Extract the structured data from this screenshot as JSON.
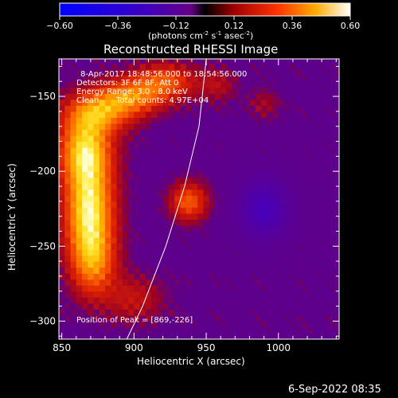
{
  "chart_data": {
    "type": "heatmap",
    "title": "Reconstructed RHESSI Image",
    "xlabel": "Heliocentric X (arcsec)",
    "ylabel": "Heliocentric Y (arcsec)",
    "xlim": [
      848,
      1042
    ],
    "ylim": [
      -312,
      -125
    ],
    "xticks": [
      850,
      900,
      950,
      1000
    ],
    "yticks": [
      -150,
      -200,
      -250,
      -300
    ],
    "colorbar": {
      "min": -0.6,
      "max": 0.6,
      "ticks": [
        "-0.60",
        "-0.36",
        "-0.12",
        "0.12",
        "0.36",
        "0.60"
      ],
      "label_parts": [
        "(photons cm",
        "-2",
        " s",
        "-1",
        " asec",
        "-2",
        ")"
      ]
    },
    "annotations": {
      "time_range": "8-Apr-2017 18:48:56.000 to 18:54:56.000",
      "detectors": "Detectors: 3F 6F 8F, Att 0",
      "energy_range": "Energy Range: 3.0 - 8.0 keV",
      "clean": "Clean",
      "total_counts": "Total counts: 4.97E+04",
      "peak": "Position of Peak = [869,-226]"
    },
    "peak": {
      "x": 869,
      "y": -226,
      "value": 0.6
    },
    "sources": [
      {
        "x": 869,
        "y": -226,
        "amp": 0.95,
        "sx": 12,
        "sy": 24
      },
      {
        "x": 866,
        "y": -185,
        "amp": 0.75,
        "sx": 13,
        "sy": 16
      },
      {
        "x": 875,
        "y": -160,
        "amp": 0.6,
        "sx": 16,
        "sy": 10
      },
      {
        "x": 898,
        "y": -150,
        "amp": 0.55,
        "sx": 15,
        "sy": 9
      },
      {
        "x": 922,
        "y": -140,
        "amp": 0.5,
        "sx": 15,
        "sy": 9
      },
      {
        "x": 938,
        "y": -220,
        "amp": 0.55,
        "sx": 9,
        "sy": 9
      },
      {
        "x": 872,
        "y": -262,
        "amp": 0.5,
        "sx": 11,
        "sy": 16
      },
      {
        "x": 900,
        "y": -285,
        "amp": 0.28,
        "sx": 14,
        "sy": 11
      },
      {
        "x": 958,
        "y": -142,
        "amp": 0.22,
        "sx": 9,
        "sy": 8
      },
      {
        "x": 990,
        "y": -155,
        "amp": 0.18,
        "sx": 8,
        "sy": 7
      },
      {
        "x": 990,
        "y": -225,
        "amp": -0.35,
        "sx": 12,
        "sy": 14
      }
    ],
    "limb": [
      [
        950,
        -125
      ],
      [
        945,
        -170
      ],
      [
        935,
        -210
      ],
      [
        922,
        -250
      ],
      [
        906,
        -290
      ],
      [
        895,
        -312
      ]
    ],
    "grid": false
  },
  "footer": {
    "date": "6-Sep-2022 08:35"
  }
}
